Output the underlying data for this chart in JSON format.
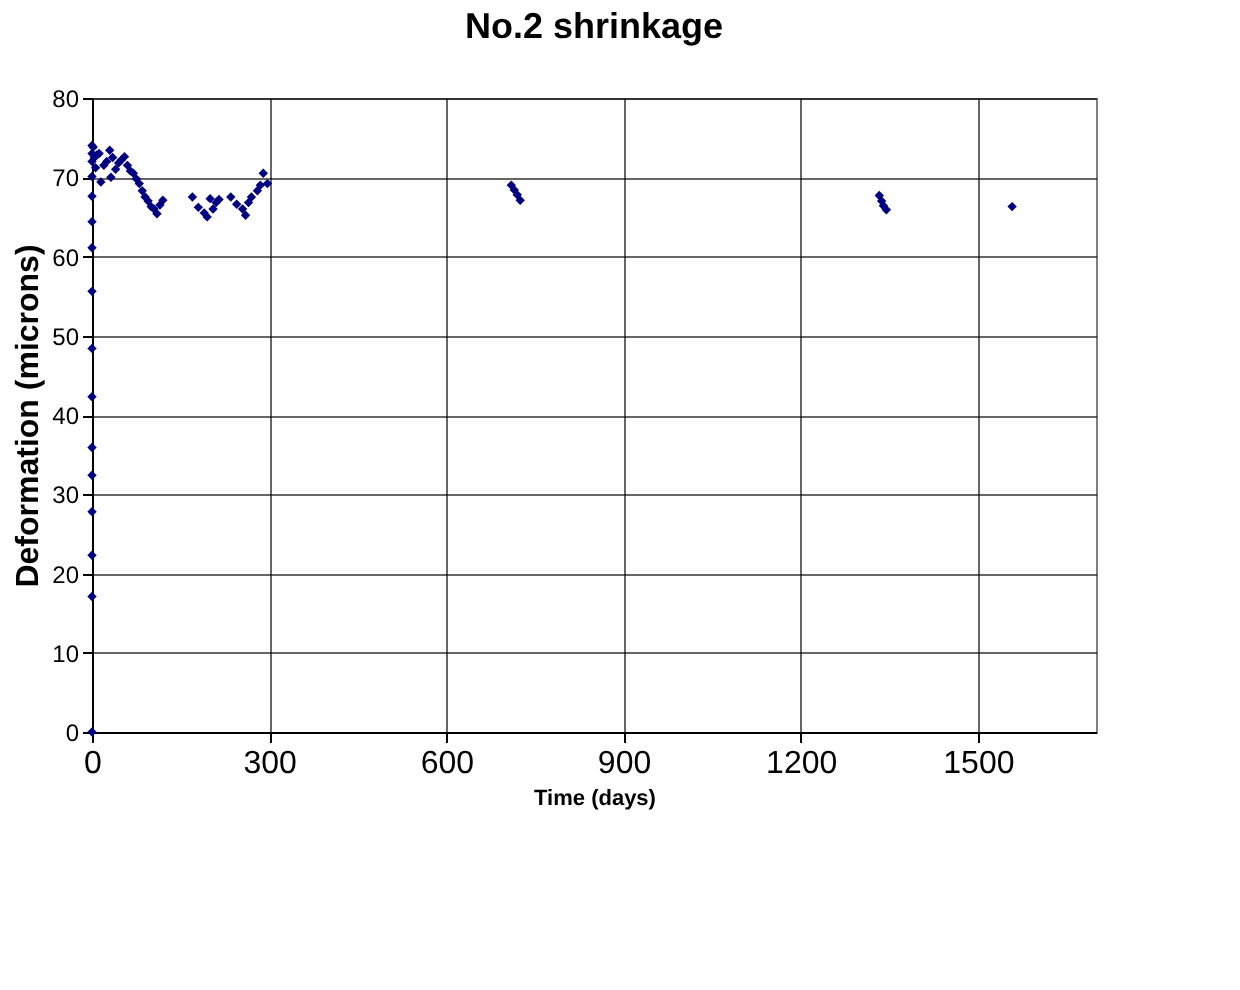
{
  "chart_data": {
    "type": "scatter",
    "title": "No.2 shrinkage",
    "xlabel": "Time (days)",
    "ylabel": "Deformation (microns)",
    "xlim": [
      0,
      1700
    ],
    "xticks": [
      0,
      300,
      600,
      900,
      1200,
      1500
    ],
    "ylim": [
      0,
      80
    ],
    "yticks": [
      0,
      10,
      20,
      30,
      40,
      50,
      60,
      70,
      80
    ],
    "grid": true,
    "legend": false,
    "marker": "diamond",
    "series": [
      {
        "color": "#000080",
        "x": [
          0,
          0,
          0,
          0,
          0,
          0,
          0,
          0,
          0,
          0,
          0,
          0,
          0,
          0,
          0,
          0,
          2,
          4,
          6,
          8,
          12,
          15,
          20,
          25,
          30,
          32,
          35,
          40,
          45,
          50,
          55,
          60,
          65,
          70,
          75,
          80,
          85,
          90,
          95,
          100,
          105,
          110,
          115,
          120,
          170,
          180,
          190,
          195,
          200,
          205,
          210,
          215,
          235,
          245,
          255,
          260,
          265,
          270,
          280,
          285,
          290,
          297,
          710,
          715,
          720,
          725,
          1333,
          1337,
          1340,
          1345,
          1558
        ],
        "values": [
          0,
          17.1,
          22.3,
          27.8,
          32.4,
          35.9,
          42.3,
          48.4,
          55.6,
          61.1,
          64.4,
          67.6,
          70.1,
          72,
          73,
          74,
          73.8,
          72.5,
          71.2,
          72.8,
          73,
          69.4,
          71.5,
          72,
          73.4,
          70,
          72.5,
          71,
          71.8,
          72.2,
          72.6,
          71.5,
          70.8,
          70.5,
          69.8,
          69.2,
          68.3,
          67.5,
          67,
          66.3,
          66,
          65.4,
          66.5,
          67.1,
          67.5,
          66.2,
          65.5,
          65,
          67.3,
          66,
          66.8,
          67.2,
          67.5,
          66.6,
          66,
          65.2,
          66.8,
          67.5,
          68.3,
          69,
          70.5,
          69.2,
          69,
          68.4,
          67.8,
          67.1,
          67.7,
          67,
          66.4,
          65.9,
          66.3
        ]
      }
    ]
  }
}
